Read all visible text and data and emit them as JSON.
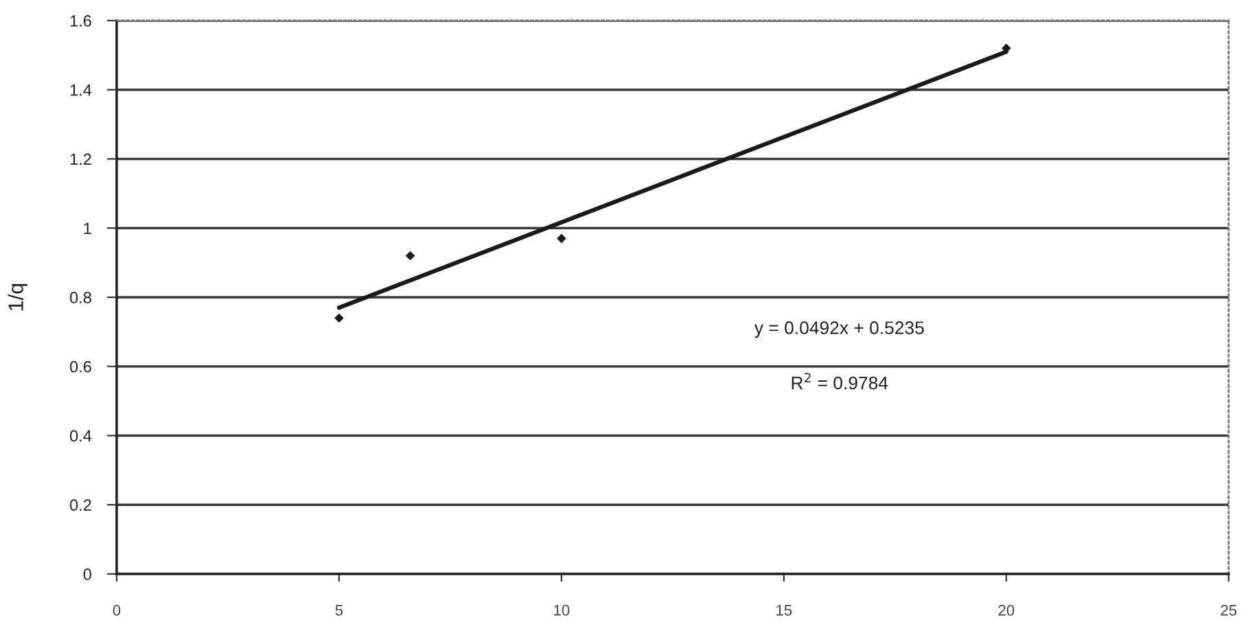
{
  "chart_data": {
    "type": "scatter",
    "ylabel": "1/q",
    "xlim": [
      0,
      25
    ],
    "xticks": [
      0,
      5,
      10,
      15,
      20,
      25
    ],
    "ylim": [
      0,
      1.6
    ],
    "yticks": [
      0,
      0.2,
      0.4,
      0.6,
      0.8,
      1,
      1.2,
      1.4,
      1.6
    ],
    "grid": "y",
    "series": [
      {
        "color": "#1a1a1a",
        "x": [
          5,
          6.6,
          10,
          20
        ],
        "values": [
          0.74,
          0.92,
          0.97,
          1.52
        ],
        "marker": "diamond"
      },
      {
        "type": "line",
        "color": "#1a1a1a",
        "x": [
          5,
          20
        ],
        "values": [
          0.77,
          1.51
        ],
        "line_style": "solid"
      }
    ],
    "annotations": [
      "y = 0.0492x + 0.5235",
      "R$^{2}$ = 0.9784"
    ]
  }
}
